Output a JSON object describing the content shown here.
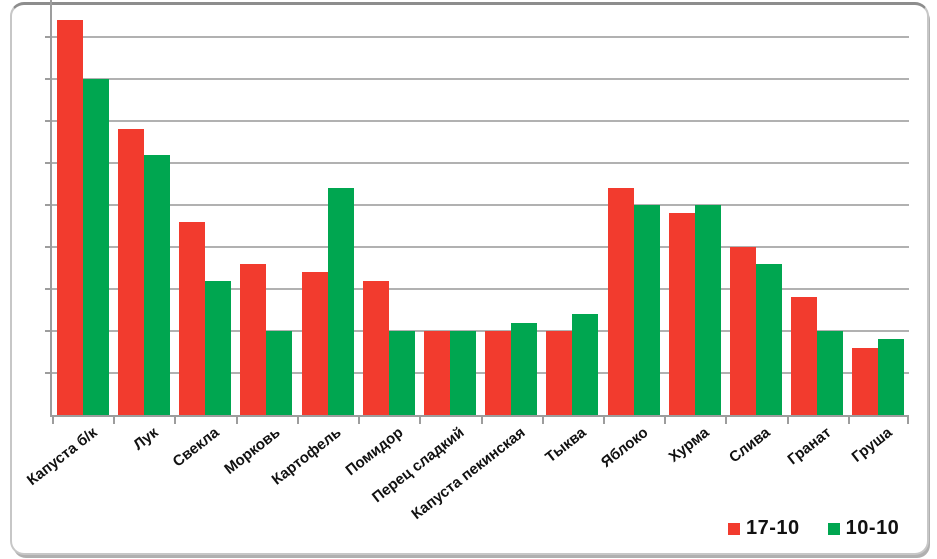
{
  "chart_data": {
    "type": "bar",
    "title": "",
    "categories": [
      "Капуста б/к",
      "Лук",
      "Свекла",
      "Морковь",
      "Картофель",
      "Помидор",
      "Перец сладкий",
      "Капуста пекинская",
      "Тыква",
      "Яблоко",
      "Хурма",
      "Слива",
      "Гранат",
      "Груша"
    ],
    "series": [
      {
        "name": "17-10",
        "color": "#f23b2e",
        "values": [
          94,
          68,
          46,
          36,
          34,
          32,
          20,
          20,
          20,
          54,
          48,
          40,
          28,
          16
        ]
      },
      {
        "name": "10-10",
        "color": "#00a650",
        "values": [
          80,
          62,
          32,
          20,
          54,
          20,
          20,
          22,
          24,
          50,
          50,
          36,
          20,
          18
        ]
      }
    ],
    "xlabel": "",
    "ylabel": "",
    "ylim": [
      0,
      100
    ],
    "gridline_step": 10,
    "y_tick_labels_visible": false,
    "grid": "horizontal",
    "legend_position": "bottom-right"
  },
  "colors": {
    "bar_red": "#f23b2e",
    "bar_green": "#00a650",
    "gridline": "#b1b1b1",
    "axis": "#9d9d9d",
    "label_text": "#111111",
    "card_border": "#c7c7c7",
    "card_border_top": "#8d8d8d",
    "background": "#ffffff"
  }
}
